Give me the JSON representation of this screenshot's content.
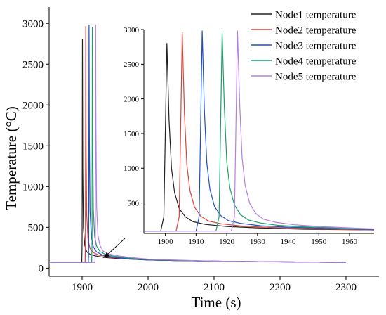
{
  "chart_data": [
    {
      "panel": "main",
      "type": "line",
      "xlabel": "Time (s)",
      "ylabel": "Temperature (°C)",
      "xlim": [
        1850,
        2350
      ],
      "ylim": [
        -100,
        3200
      ],
      "xticks": [
        "1900",
        "2000",
        "2100",
        "2200",
        "2300"
      ],
      "xtick_values": [
        1900,
        2000,
        2100,
        2200,
        2300
      ],
      "yticks": [
        "0",
        "500",
        "1000",
        "1500",
        "2000",
        "2500",
        "3000"
      ],
      "ytick_values": [
        0,
        500,
        1000,
        1500,
        2000,
        2500,
        3000
      ],
      "legend": "top-right",
      "series": [
        {
          "name": "Node1 temperature",
          "color": "#222222",
          "x": [
            1850,
            1899.5,
            1900,
            1900.5,
            1901,
            1902,
            1904,
            1907,
            1912,
            1920,
            1935,
            1960,
            2000,
            2100,
            2300
          ],
          "y": [
            70,
            70,
            300,
            2800,
            1200,
            500,
            280,
            200,
            170,
            150,
            130,
            115,
            100,
            85,
            70
          ]
        },
        {
          "name": "Node2 temperature",
          "color": "#d9423a",
          "x": [
            1850,
            1904.5,
            1905,
            1905.5,
            1906,
            1907,
            1909,
            1912,
            1917,
            1925,
            1940,
            1960,
            2000,
            2100,
            2300
          ],
          "y": [
            70,
            70,
            300,
            2960,
            1500,
            650,
            350,
            240,
            190,
            160,
            140,
            120,
            100,
            85,
            70
          ]
        },
        {
          "name": "Node3 temperature",
          "color": "#1f4fc4",
          "x": [
            1850,
            1909.5,
            1910,
            1910.5,
            1911,
            1912,
            1914,
            1917,
            1922,
            1930,
            1945,
            1965,
            2000,
            2100,
            2300
          ],
          "y": [
            70,
            70,
            300,
            2980,
            1600,
            700,
            380,
            260,
            200,
            165,
            140,
            120,
            100,
            85,
            70
          ]
        },
        {
          "name": "Node4 temperature",
          "color": "#1a9e6a",
          "x": [
            1850,
            1914.5,
            1915,
            1915.5,
            1916,
            1917,
            1919,
            1922,
            1927,
            1935,
            1950,
            1970,
            2000,
            2100,
            2300
          ],
          "y": [
            70,
            70,
            300,
            2950,
            1650,
            720,
            390,
            270,
            205,
            170,
            145,
            125,
            105,
            85,
            70
          ]
        },
        {
          "name": "Node5 temperature",
          "color": "#b77fe0",
          "x": [
            1850,
            1919.5,
            1920,
            1920.5,
            1921,
            1922,
            1924,
            1927,
            1932,
            1940,
            1955,
            1975,
            2000,
            2100,
            2300
          ],
          "y": [
            70,
            70,
            300,
            2980,
            1700,
            750,
            400,
            280,
            210,
            175,
            150,
            130,
            110,
            85,
            70
          ]
        }
      ]
    },
    {
      "panel": "inset",
      "type": "line",
      "xlim": [
        1893,
        1968
      ],
      "ylim": [
        60,
        3000
      ],
      "xticks": [
        "1900",
        "1910",
        "1920",
        "1930",
        "1940",
        "1950",
        "1960"
      ],
      "xtick_values": [
        1900,
        1910,
        1920,
        1930,
        1940,
        1950,
        1960
      ],
      "yticks": [
        "500",
        "1000",
        "1500",
        "2000",
        "2500",
        "3000"
      ],
      "ytick_values": [
        500,
        1000,
        1500,
        2000,
        2500,
        3000
      ],
      "series": [
        {
          "name": "Node1 temperature",
          "color": "#222222",
          "x": [
            1893,
            1898.5,
            1899.5,
            1900.5,
            1901.2,
            1902,
            1903,
            1904.5,
            1906.5,
            1909,
            1913,
            1920,
            1930,
            1945,
            1968
          ],
          "y": [
            95,
            95,
            300,
            2800,
            1700,
            1000,
            650,
            420,
            300,
            230,
            190,
            160,
            140,
            120,
            110
          ]
        },
        {
          "name": "Node2 temperature",
          "color": "#d9423a",
          "x": [
            1893,
            1903.5,
            1904.5,
            1905.5,
            1906.2,
            1907,
            1908,
            1909.5,
            1911.5,
            1914,
            1918,
            1925,
            1935,
            1950,
            1968
          ],
          "y": [
            95,
            95,
            300,
            2960,
            1800,
            1050,
            680,
            440,
            310,
            240,
            200,
            165,
            145,
            125,
            110
          ]
        },
        {
          "name": "Node3 temperature",
          "color": "#1f4fc4",
          "x": [
            1893,
            1910,
            1911,
            1912,
            1912.7,
            1913.5,
            1914.5,
            1916,
            1918,
            1920.5,
            1924.5,
            1931,
            1940,
            1955,
            1968
          ],
          "y": [
            95,
            95,
            300,
            2980,
            1850,
            1080,
            700,
            450,
            320,
            245,
            205,
            170,
            150,
            130,
            115
          ]
        },
        {
          "name": "Node4 temperature",
          "color": "#1a9e6a",
          "x": [
            1893,
            1916.5,
            1917.5,
            1918.5,
            1919.2,
            1920,
            1921,
            1922.5,
            1924.5,
            1927,
            1931,
            1937,
            1945,
            1958,
            1968
          ],
          "y": [
            95,
            95,
            300,
            2950,
            1900,
            1100,
            720,
            470,
            330,
            255,
            210,
            175,
            155,
            135,
            120
          ]
        },
        {
          "name": "Node5 temperature",
          "color": "#b77fe0",
          "x": [
            1893,
            1921.5,
            1922.5,
            1923.5,
            1924.2,
            1925,
            1926,
            1927.5,
            1929.5,
            1932,
            1936,
            1942,
            1950,
            1960,
            1968
          ],
          "y": [
            95,
            95,
            300,
            2980,
            1950,
            1150,
            750,
            490,
            345,
            265,
            220,
            185,
            160,
            140,
            125
          ]
        }
      ]
    }
  ]
}
